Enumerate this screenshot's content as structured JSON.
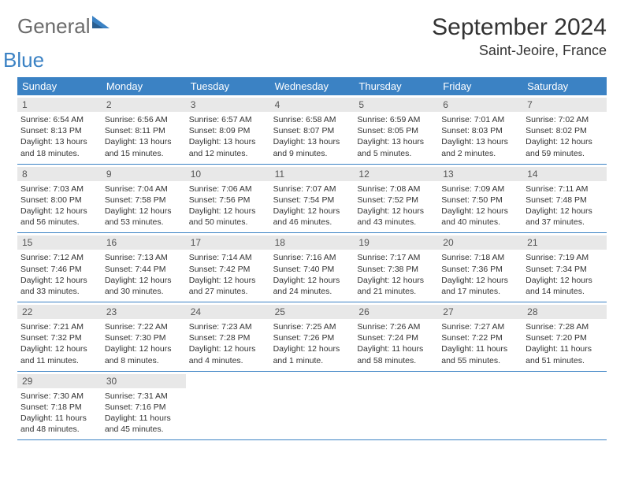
{
  "logo": {
    "main": "General",
    "sub": "Blue"
  },
  "title": "September 2024",
  "location": "Saint-Jeoire, France",
  "colors": {
    "header_bg": "#3b82c4",
    "daynum_bg": "#e8e8e8",
    "text": "#333333",
    "logo_gray": "#6b6b6b",
    "logo_blue": "#3b82c4"
  },
  "day_headers": [
    "Sunday",
    "Monday",
    "Tuesday",
    "Wednesday",
    "Thursday",
    "Friday",
    "Saturday"
  ],
  "weeks": [
    [
      {
        "n": "1",
        "sr": "6:54 AM",
        "ss": "8:13 PM",
        "dl": "13 hours and 18 minutes."
      },
      {
        "n": "2",
        "sr": "6:56 AM",
        "ss": "8:11 PM",
        "dl": "13 hours and 15 minutes."
      },
      {
        "n": "3",
        "sr": "6:57 AM",
        "ss": "8:09 PM",
        "dl": "13 hours and 12 minutes."
      },
      {
        "n": "4",
        "sr": "6:58 AM",
        "ss": "8:07 PM",
        "dl": "13 hours and 9 minutes."
      },
      {
        "n": "5",
        "sr": "6:59 AM",
        "ss": "8:05 PM",
        "dl": "13 hours and 5 minutes."
      },
      {
        "n": "6",
        "sr": "7:01 AM",
        "ss": "8:03 PM",
        "dl": "13 hours and 2 minutes."
      },
      {
        "n": "7",
        "sr": "7:02 AM",
        "ss": "8:02 PM",
        "dl": "12 hours and 59 minutes."
      }
    ],
    [
      {
        "n": "8",
        "sr": "7:03 AM",
        "ss": "8:00 PM",
        "dl": "12 hours and 56 minutes."
      },
      {
        "n": "9",
        "sr": "7:04 AM",
        "ss": "7:58 PM",
        "dl": "12 hours and 53 minutes."
      },
      {
        "n": "10",
        "sr": "7:06 AM",
        "ss": "7:56 PM",
        "dl": "12 hours and 50 minutes."
      },
      {
        "n": "11",
        "sr": "7:07 AM",
        "ss": "7:54 PM",
        "dl": "12 hours and 46 minutes."
      },
      {
        "n": "12",
        "sr": "7:08 AM",
        "ss": "7:52 PM",
        "dl": "12 hours and 43 minutes."
      },
      {
        "n": "13",
        "sr": "7:09 AM",
        "ss": "7:50 PM",
        "dl": "12 hours and 40 minutes."
      },
      {
        "n": "14",
        "sr": "7:11 AM",
        "ss": "7:48 PM",
        "dl": "12 hours and 37 minutes."
      }
    ],
    [
      {
        "n": "15",
        "sr": "7:12 AM",
        "ss": "7:46 PM",
        "dl": "12 hours and 33 minutes."
      },
      {
        "n": "16",
        "sr": "7:13 AM",
        "ss": "7:44 PM",
        "dl": "12 hours and 30 minutes."
      },
      {
        "n": "17",
        "sr": "7:14 AM",
        "ss": "7:42 PM",
        "dl": "12 hours and 27 minutes."
      },
      {
        "n": "18",
        "sr": "7:16 AM",
        "ss": "7:40 PM",
        "dl": "12 hours and 24 minutes."
      },
      {
        "n": "19",
        "sr": "7:17 AM",
        "ss": "7:38 PM",
        "dl": "12 hours and 21 minutes."
      },
      {
        "n": "20",
        "sr": "7:18 AM",
        "ss": "7:36 PM",
        "dl": "12 hours and 17 minutes."
      },
      {
        "n": "21",
        "sr": "7:19 AM",
        "ss": "7:34 PM",
        "dl": "12 hours and 14 minutes."
      }
    ],
    [
      {
        "n": "22",
        "sr": "7:21 AM",
        "ss": "7:32 PM",
        "dl": "12 hours and 11 minutes."
      },
      {
        "n": "23",
        "sr": "7:22 AM",
        "ss": "7:30 PM",
        "dl": "12 hours and 8 minutes."
      },
      {
        "n": "24",
        "sr": "7:23 AM",
        "ss": "7:28 PM",
        "dl": "12 hours and 4 minutes."
      },
      {
        "n": "25",
        "sr": "7:25 AM",
        "ss": "7:26 PM",
        "dl": "12 hours and 1 minute."
      },
      {
        "n": "26",
        "sr": "7:26 AM",
        "ss": "7:24 PM",
        "dl": "11 hours and 58 minutes."
      },
      {
        "n": "27",
        "sr": "7:27 AM",
        "ss": "7:22 PM",
        "dl": "11 hours and 55 minutes."
      },
      {
        "n": "28",
        "sr": "7:28 AM",
        "ss": "7:20 PM",
        "dl": "11 hours and 51 minutes."
      }
    ],
    [
      {
        "n": "29",
        "sr": "7:30 AM",
        "ss": "7:18 PM",
        "dl": "11 hours and 48 minutes."
      },
      {
        "n": "30",
        "sr": "7:31 AM",
        "ss": "7:16 PM",
        "dl": "11 hours and 45 minutes."
      },
      null,
      null,
      null,
      null,
      null
    ]
  ],
  "labels": {
    "sunrise": "Sunrise:",
    "sunset": "Sunset:",
    "daylight": "Daylight:"
  }
}
